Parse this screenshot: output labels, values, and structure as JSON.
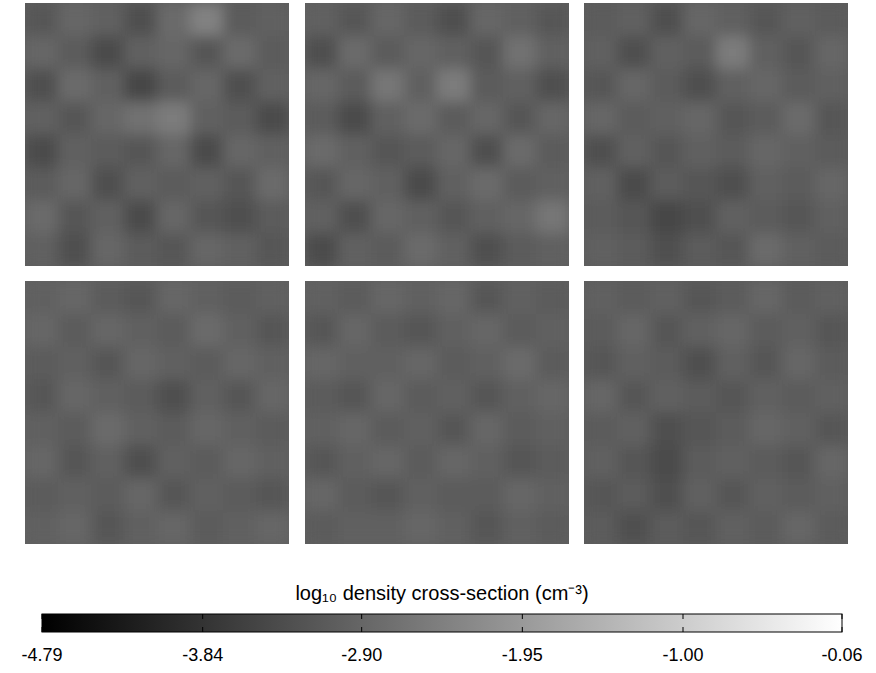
{
  "chart_data": {
    "type": "heatmap",
    "tick_labels": false,
    "colorbar": {
      "label": "log₁₀ density cross-section (cm⁻³)",
      "range": [
        -4.79,
        -0.06
      ],
      "ticks": [
        -4.79,
        -3.84,
        {
          "value": -2.9,
          "label": "-2.90"
        },
        -1.95,
        {
          "value": -1.0,
          "label": "-1.00"
        },
        -0.06
      ]
    },
    "panels": [
      {
        "cells": [
          [
            -3.2,
            -2.9,
            -3.0,
            -3.3,
            -2.8,
            -2.4,
            -3.1,
            -3.0
          ],
          [
            -2.9,
            -3.1,
            -3.4,
            -3.0,
            -2.9,
            -3.2,
            -2.8,
            -3.1
          ],
          [
            -3.3,
            -2.8,
            -3.0,
            -3.5,
            -3.1,
            -2.9,
            -3.3,
            -3.0
          ],
          [
            -3.0,
            -3.2,
            -2.9,
            -2.7,
            -2.5,
            -3.0,
            -3.1,
            -3.4
          ],
          [
            -3.4,
            -3.0,
            -3.1,
            -3.2,
            -2.9,
            -3.4,
            -2.9,
            -3.0
          ],
          [
            -3.1,
            -2.9,
            -3.3,
            -3.0,
            -3.1,
            -3.0,
            -3.2,
            -2.8
          ],
          [
            -2.8,
            -3.2,
            -3.0,
            -3.4,
            -2.9,
            -3.2,
            -3.3,
            -3.1
          ],
          [
            -3.0,
            -3.3,
            -2.9,
            -3.1,
            -3.2,
            -2.9,
            -3.0,
            -3.2
          ]
        ]
      },
      {
        "cells": [
          [
            -3.0,
            -3.2,
            -2.9,
            -3.1,
            -3.3,
            -2.9,
            -3.0,
            -3.2
          ],
          [
            -3.3,
            -2.8,
            -3.1,
            -2.9,
            -3.0,
            -3.2,
            -2.7,
            -3.0
          ],
          [
            -2.9,
            -3.1,
            -2.6,
            -3.0,
            -2.5,
            -3.1,
            -3.0,
            -3.3
          ],
          [
            -3.1,
            -3.4,
            -3.0,
            -2.8,
            -3.1,
            -2.9,
            -3.2,
            -2.9
          ],
          [
            -2.8,
            -3.0,
            -3.2,
            -3.1,
            -2.9,
            -3.3,
            -2.8,
            -3.1
          ],
          [
            -3.2,
            -2.9,
            -3.0,
            -3.4,
            -3.0,
            -2.8,
            -3.1,
            -3.0
          ],
          [
            -3.0,
            -3.3,
            -2.9,
            -3.0,
            -3.2,
            -3.0,
            -2.9,
            -2.6
          ],
          [
            -3.4,
            -3.0,
            -3.1,
            -2.8,
            -3.0,
            -3.3,
            -3.1,
            -3.0
          ]
        ]
      },
      {
        "cells": [
          [
            -3.1,
            -3.0,
            -3.3,
            -2.9,
            -3.0,
            -3.2,
            -3.0,
            -3.1
          ],
          [
            -3.0,
            -3.3,
            -3.0,
            -3.1,
            -2.5,
            -3.0,
            -3.2,
            -2.9
          ],
          [
            -3.2,
            -2.9,
            -3.1,
            -3.3,
            -3.0,
            -2.9,
            -3.1,
            -3.0
          ],
          [
            -2.9,
            -3.1,
            -3.0,
            -2.9,
            -3.2,
            -3.1,
            -2.8,
            -3.2
          ],
          [
            -3.3,
            -3.0,
            -3.2,
            -3.0,
            -3.1,
            -2.9,
            -3.0,
            -3.1
          ],
          [
            -3.0,
            -3.4,
            -3.1,
            -3.2,
            -3.3,
            -3.0,
            -3.1,
            -2.9
          ],
          [
            -3.1,
            -3.2,
            -3.5,
            -3.3,
            -3.0,
            -3.1,
            -3.2,
            -3.0
          ],
          [
            -3.0,
            -3.1,
            -3.3,
            -3.1,
            -3.2,
            -2.8,
            -3.0,
            -3.1
          ]
        ]
      },
      {
        "cells": [
          [
            -3.0,
            -2.9,
            -3.1,
            -3.2,
            -2.9,
            -3.0,
            -3.1,
            -3.0
          ],
          [
            -2.9,
            -3.1,
            -2.9,
            -3.0,
            -3.1,
            -2.8,
            -3.0,
            -3.2
          ],
          [
            -3.1,
            -3.0,
            -3.2,
            -2.9,
            -3.0,
            -3.1,
            -2.9,
            -3.0
          ],
          [
            -3.2,
            -2.9,
            -3.0,
            -3.1,
            -3.3,
            -3.0,
            -3.2,
            -2.9
          ],
          [
            -3.0,
            -3.1,
            -2.8,
            -3.0,
            -3.1,
            -2.9,
            -3.0,
            -3.1
          ],
          [
            -2.9,
            -3.2,
            -3.0,
            -3.3,
            -3.0,
            -3.1,
            -2.9,
            -3.0
          ],
          [
            -3.1,
            -3.0,
            -3.1,
            -2.9,
            -3.2,
            -3.0,
            -3.1,
            -3.2
          ],
          [
            -3.0,
            -2.9,
            -3.2,
            -3.0,
            -2.9,
            -3.1,
            -3.0,
            -2.9
          ]
        ]
      },
      {
        "cells": [
          [
            -3.0,
            -3.1,
            -2.9,
            -3.0,
            -2.9,
            -3.2,
            -3.0,
            -3.1
          ],
          [
            -3.2,
            -2.9,
            -3.1,
            -3.2,
            -3.0,
            -2.9,
            -3.1,
            -3.0
          ],
          [
            -2.9,
            -3.0,
            -3.0,
            -2.9,
            -3.1,
            -3.0,
            -2.8,
            -3.1
          ],
          [
            -3.1,
            -3.2,
            -2.9,
            -3.1,
            -3.0,
            -3.2,
            -3.0,
            -2.9
          ],
          [
            -3.0,
            -2.9,
            -3.1,
            -3.0,
            -3.2,
            -2.9,
            -3.1,
            -3.0
          ],
          [
            -3.2,
            -3.0,
            -2.9,
            -3.1,
            -2.9,
            -3.0,
            -3.2,
            -3.1
          ],
          [
            -2.9,
            -3.1,
            -3.2,
            -3.0,
            -3.1,
            -3.1,
            -2.9,
            -3.0
          ],
          [
            -3.1,
            -3.0,
            -3.0,
            -2.9,
            -3.0,
            -3.2,
            -3.0,
            -3.1
          ]
        ]
      },
      {
        "cells": [
          [
            -3.0,
            -3.1,
            -3.0,
            -3.2,
            -3.1,
            -2.9,
            -3.1,
            -3.0
          ],
          [
            -3.1,
            -2.9,
            -3.2,
            -3.0,
            -2.9,
            -3.1,
            -3.0,
            -3.2
          ],
          [
            -3.2,
            -3.0,
            -3.1,
            -3.3,
            -3.0,
            -3.2,
            -2.9,
            -3.1
          ],
          [
            -2.9,
            -3.2,
            -3.0,
            -3.1,
            -3.2,
            -3.0,
            -3.1,
            -3.0
          ],
          [
            -3.1,
            -3.0,
            -3.3,
            -3.2,
            -3.1,
            -2.9,
            -3.0,
            -3.2
          ],
          [
            -3.0,
            -3.2,
            -3.4,
            -3.1,
            -3.0,
            -3.1,
            -3.2,
            -2.9
          ],
          [
            -3.2,
            -3.1,
            -3.3,
            -3.0,
            -3.2,
            -3.0,
            -3.1,
            -3.0
          ],
          [
            -3.1,
            -3.3,
            -3.1,
            -3.2,
            -3.0,
            -3.1,
            -2.9,
            -3.1
          ]
        ]
      }
    ]
  }
}
